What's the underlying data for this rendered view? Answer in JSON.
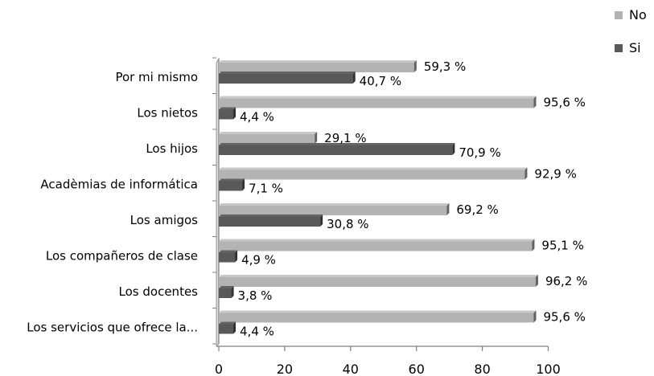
{
  "chart_data": {
    "type": "bar",
    "orientation": "horizontal",
    "categories": [
      "Por mi mismo",
      "Los nietos",
      "Los hijos",
      "Acadèmias de informática",
      "Los amigos",
      "Los compañeros de clase",
      "Los docentes",
      "Los servicios que ofrece la..."
    ],
    "series": [
      {
        "name": "No",
        "color": "#b3b3b3",
        "values": [
          59.3,
          95.6,
          29.1,
          92.9,
          69.2,
          95.1,
          96.2,
          95.6
        ],
        "labels": [
          "59,3 %",
          "95,6 %",
          "29,1 %",
          "92,9 %",
          "69,2 %",
          "95,1 %",
          "96,2 %",
          "95,6 %"
        ]
      },
      {
        "name": "Si",
        "color": "#595959",
        "values": [
          40.7,
          4.4,
          70.9,
          7.1,
          30.8,
          4.9,
          3.8,
          4.4
        ],
        "labels": [
          "40,7 %",
          "4,4 %",
          "70,9 %",
          "7,1 %",
          "30,8 %",
          "4,9 %",
          "3,8 %",
          "4,4 %"
        ]
      }
    ],
    "x_ticks": [
      "0",
      "20",
      "40",
      "60",
      "80",
      "100"
    ],
    "xlim": [
      0,
      100
    ],
    "legend_position": "top-right",
    "title": "",
    "xlabel": "",
    "ylabel": "",
    "grid": false,
    "style": "3d"
  }
}
